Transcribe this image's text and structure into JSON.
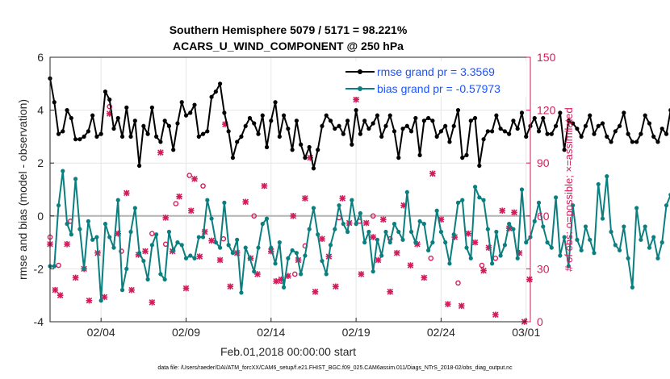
{
  "chart_data": {
    "type": "line",
    "title_line1": "Southern Hemisphere 5079 / 5171 = 98.221%",
    "title_line2": "ACARS_U_WIND_COMPONENT @ 250 hPa",
    "xlabel": "Feb.01,2018 00:00:00 start",
    "ylabel": "rmse and bias (model - observation)",
    "ylabel_right": "# of obs: o=possible; ×=assimilated",
    "footer": "data file: /Users/raeder/DAI/ATM_forcXX/CAM6_setup/f.e21.FHIST_BGC.f09_025.CAM6assim.011/Diags_NTrS_2018-02/obs_diag_output.nc",
    "x_start_day": 1,
    "x_end_day": 29.25,
    "xticks": [
      {
        "day": 4,
        "label": "02/04"
      },
      {
        "day": 9,
        "label": "02/09"
      },
      {
        "day": 14,
        "label": "02/14"
      },
      {
        "day": 19,
        "label": "02/19"
      },
      {
        "day": 24,
        "label": "02/24"
      },
      {
        "day": 29,
        "label": "03/01"
      }
    ],
    "ylim": [
      -4,
      6
    ],
    "yticks": [
      -4,
      -2,
      0,
      2,
      4,
      6
    ],
    "ylim_right": [
      0,
      150
    ],
    "yticks_right": [
      0,
      30,
      60,
      90,
      120,
      150
    ],
    "grid": true,
    "legend_position": "top-right",
    "series": [
      {
        "name": "rmse grand pr = 3.3569",
        "color": "#000000",
        "values": [
          5.2,
          4.3,
          3.1,
          3.2,
          4.0,
          3.7,
          2.9,
          2.9,
          3.0,
          3.2,
          3.8,
          3.0,
          3.1,
          4.7,
          4.4,
          3.3,
          3.7,
          3.0,
          4.1,
          3.0,
          3.6,
          1.9,
          3.4,
          3.1,
          4.1,
          3.0,
          2.8,
          3.6,
          3.4,
          2.5,
          3.5,
          4.3,
          3.8,
          3.9,
          4.2,
          3.0,
          3.1,
          3.2,
          4.5,
          4.7,
          5.0,
          3.9,
          3.2,
          2.2,
          2.8,
          3.0,
          3.4,
          3.7,
          3.5,
          3.1,
          3.8,
          2.6,
          3.6,
          4.3,
          3.0,
          3.8,
          3.3,
          2.5,
          3.6,
          2.7,
          2.2,
          2.6,
          1.8,
          2.5,
          3.4,
          3.8,
          3.6,
          3.3,
          3.4,
          3.1,
          3.6,
          2.7,
          4.0,
          3.1,
          3.6,
          3.3,
          3.5,
          3.8,
          3.0,
          3.4,
          3.8,
          3.2,
          2.2,
          3.3,
          3.4,
          3.2,
          3.7,
          2.3,
          3.6,
          3.7,
          3.6,
          3.0,
          3.2,
          3.4,
          2.8,
          3.4,
          4.0,
          2.2,
          2.3,
          3.6,
          3.7,
          1.9,
          2.9,
          3.2,
          3.2,
          3.8,
          3.3,
          3.2,
          3.1,
          3.6,
          3.3,
          3.9,
          3.0,
          3.4,
          3.7,
          3.2,
          3.7,
          3.1,
          3.1,
          3.4,
          3.9,
          2.5,
          3.6,
          3.5,
          3.3,
          3.0,
          3.4,
          3.8,
          3.1,
          3.4,
          3.5,
          3.0,
          2.8,
          3.2,
          3.4,
          3.9,
          3.1,
          2.8,
          2.8,
          3.1,
          3.8,
          3.5,
          3.0,
          2.8,
          3.3,
          3.1,
          4.0,
          3.6,
          3.9,
          3.7
        ],
        "x_step": 0.25
      },
      {
        "name": "bias grand pr = -0.57973",
        "color": "#0b7f7f",
        "values": [
          -1.9,
          -1.9,
          0.4,
          1.7,
          -0.3,
          -0.7,
          1.4,
          -0.5,
          -2.0,
          -0.2,
          -0.9,
          -0.8,
          -3.2,
          -0.3,
          -0.8,
          -1.2,
          0.6,
          -2.8,
          -2.0,
          -0.6,
          0.3,
          -1.4,
          -1.7,
          -2.4,
          -1.1,
          -0.7,
          -2.2,
          -2.4,
          -0.6,
          -1.3,
          -1.0,
          -1.1,
          -1.6,
          -1.5,
          -1.6,
          -0.8,
          -0.8,
          0.6,
          -0.1,
          -1.0,
          -1.2,
          0.5,
          -1.1,
          -1.4,
          -0.9,
          -2.9,
          -1.2,
          -1.6,
          -2.1,
          -1.2,
          -0.3,
          -0.1,
          -1.2,
          -1.8,
          -1.0,
          -2.7,
          -1.6,
          -1.3,
          -1.4,
          -2.2,
          -1.5,
          -0.5,
          0.3,
          -0.7,
          -1.7,
          -2.2,
          -1.1,
          -0.5,
          0.4,
          -0.3,
          -0.6,
          0.6,
          -0.3,
          0.1,
          -1.0,
          -0.6,
          -2.1,
          -0.9,
          -1.5,
          -0.6,
          -1.0,
          -0.3,
          -0.6,
          -0.9,
          0.9,
          -0.6,
          -1.0,
          -0.2,
          -0.3,
          -1.3,
          -1.0,
          0.2,
          -0.6,
          -1.0,
          -1.8,
          -0.7,
          0.5,
          0.6,
          -1.2,
          -1.6,
          1.1,
          0.7,
          0.6,
          -0.5,
          -1.8,
          -0.6,
          -1.5,
          -1.1,
          -0.3,
          -0.5,
          -1.6,
          1.0,
          -1.0,
          -0.8,
          -0.2,
          0.5,
          -0.4,
          -1.0,
          -1.2,
          0.7,
          -1.5,
          -0.8,
          -1.9,
          0.4,
          -0.9,
          -1.3,
          -0.4,
          -0.9,
          -1.4,
          1.2,
          -0.1,
          1.5,
          -0.6,
          -1.1,
          -1.3,
          -0.4,
          -1.6,
          -2.7,
          0.3,
          -0.9,
          -0.4,
          -1.2,
          -0.8,
          -1.6,
          -1.0,
          0.4,
          0.8,
          -0.2
        ],
        "x_step": 0.25
      }
    ],
    "obs_possible": [
      {
        "x": 1.0,
        "y": 48
      },
      {
        "x": 1.5,
        "y": 32
      },
      {
        "x": 2.2,
        "y": 57
      },
      {
        "x": 4.5,
        "y": 122
      },
      {
        "x": 5.2,
        "y": 40
      },
      {
        "x": 7.0,
        "y": 50
      },
      {
        "x": 7.8,
        "y": 44
      },
      {
        "x": 8.4,
        "y": 67
      },
      {
        "x": 9.2,
        "y": 83
      },
      {
        "x": 10.0,
        "y": 77
      },
      {
        "x": 11.2,
        "y": 47
      },
      {
        "x": 13.0,
        "y": 60
      },
      {
        "x": 14.6,
        "y": 23
      },
      {
        "x": 15.4,
        "y": 27
      },
      {
        "x": 16.0,
        "y": 43
      },
      {
        "x": 18.0,
        "y": 59
      },
      {
        "x": 19.2,
        "y": 57
      },
      {
        "x": 20.0,
        "y": 60
      },
      {
        "x": 21.0,
        "y": 47
      },
      {
        "x": 23.4,
        "y": 36
      },
      {
        "x": 25.0,
        "y": 22
      },
      {
        "x": 26.4,
        "y": 32
      },
      {
        "x": 27.2,
        "y": 36
      }
    ],
    "obs_assimilated": [
      {
        "x": 1.0,
        "y": 44
      },
      {
        "x": 1.3,
        "y": 18
      },
      {
        "x": 1.6,
        "y": 15
      },
      {
        "x": 2.0,
        "y": 44
      },
      {
        "x": 2.5,
        "y": 25
      },
      {
        "x": 3.0,
        "y": 30
      },
      {
        "x": 3.3,
        "y": 12
      },
      {
        "x": 3.8,
        "y": 39
      },
      {
        "x": 4.2,
        "y": 14
      },
      {
        "x": 4.5,
        "y": 118
      },
      {
        "x": 5.0,
        "y": 50
      },
      {
        "x": 5.5,
        "y": 73
      },
      {
        "x": 5.8,
        "y": 18
      },
      {
        "x": 6.2,
        "y": 38
      },
      {
        "x": 6.6,
        "y": 40
      },
      {
        "x": 7.0,
        "y": 11
      },
      {
        "x": 7.5,
        "y": 96
      },
      {
        "x": 7.8,
        "y": 59
      },
      {
        "x": 8.2,
        "y": 40
      },
      {
        "x": 8.6,
        "y": 71
      },
      {
        "x": 9.0,
        "y": 19
      },
      {
        "x": 9.3,
        "y": 63
      },
      {
        "x": 9.5,
        "y": 81
      },
      {
        "x": 9.8,
        "y": 37
      },
      {
        "x": 10.1,
        "y": 51
      },
      {
        "x": 10.5,
        "y": 46
      },
      {
        "x": 11.0,
        "y": 35
      },
      {
        "x": 11.3,
        "y": 112
      },
      {
        "x": 11.6,
        "y": 20
      },
      {
        "x": 12.0,
        "y": 39
      },
      {
        "x": 12.5,
        "y": 68
      },
      {
        "x": 12.8,
        "y": 36
      },
      {
        "x": 13.2,
        "y": 27
      },
      {
        "x": 13.6,
        "y": 77
      },
      {
        "x": 14.0,
        "y": 40
      },
      {
        "x": 14.3,
        "y": 23
      },
      {
        "x": 14.6,
        "y": 24
      },
      {
        "x": 15.0,
        "y": 26
      },
      {
        "x": 15.3,
        "y": 60
      },
      {
        "x": 15.6,
        "y": 35
      },
      {
        "x": 16.0,
        "y": 70
      },
      {
        "x": 16.3,
        "y": 93
      },
      {
        "x": 16.6,
        "y": 17
      },
      {
        "x": 17.0,
        "y": 47
      },
      {
        "x": 17.4,
        "y": 37
      },
      {
        "x": 17.8,
        "y": 20
      },
      {
        "x": 18.2,
        "y": 70
      },
      {
        "x": 18.6,
        "y": 56
      },
      {
        "x": 19.0,
        "y": 126
      },
      {
        "x": 19.3,
        "y": 27
      },
      {
        "x": 19.6,
        "y": 56
      },
      {
        "x": 20.0,
        "y": 48
      },
      {
        "x": 20.3,
        "y": 35
      },
      {
        "x": 20.6,
        "y": 58
      },
      {
        "x": 21.0,
        "y": 17
      },
      {
        "x": 21.4,
        "y": 39
      },
      {
        "x": 21.8,
        "y": 66
      },
      {
        "x": 22.2,
        "y": 32
      },
      {
        "x": 22.6,
        "y": 44
      },
      {
        "x": 23.0,
        "y": 25
      },
      {
        "x": 23.5,
        "y": 84
      },
      {
        "x": 24.0,
        "y": 58
      },
      {
        "x": 24.4,
        "y": 10
      },
      {
        "x": 24.8,
        "y": 48
      },
      {
        "x": 25.2,
        "y": 9
      },
      {
        "x": 25.6,
        "y": 50
      },
      {
        "x": 26.0,
        "y": 45
      },
      {
        "x": 26.5,
        "y": 29
      },
      {
        "x": 26.8,
        "y": 42
      },
      {
        "x": 27.2,
        "y": 4
      },
      {
        "x": 27.6,
        "y": 63
      },
      {
        "x": 28.0,
        "y": 53
      },
      {
        "x": 28.3,
        "y": 62
      },
      {
        "x": 28.6,
        "y": 39
      },
      {
        "x": 28.9,
        "y": 0
      },
      {
        "x": 29.2,
        "y": 24
      }
    ]
  }
}
